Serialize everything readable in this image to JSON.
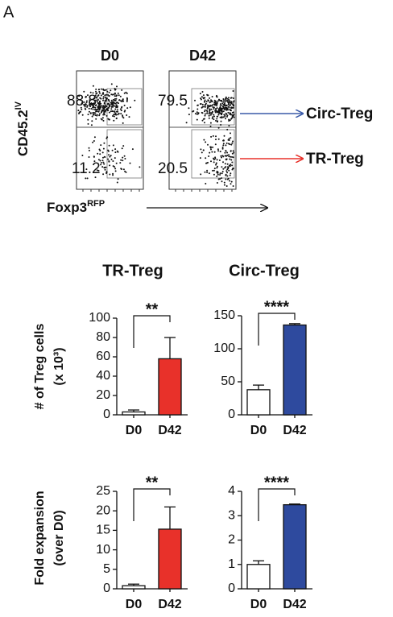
{
  "panel_label": "A",
  "flow": {
    "y_label": "CD45.2",
    "y_label_sup": "IV",
    "x_label": "Foxp3",
    "x_label_sup": "RFP",
    "plots": [
      {
        "title": "D0",
        "gates": [
          88.8,
          11.2
        ]
      },
      {
        "title": "D42",
        "gates": [
          79.5,
          20.5
        ]
      }
    ],
    "arrows": [
      {
        "label": "Circ-Treg",
        "color": "#3a5aa8"
      },
      {
        "label": "TR-Treg",
        "color": "#e8312a"
      }
    ]
  },
  "column_titles": [
    {
      "text": "TR-Treg",
      "color": "#e8312a"
    },
    {
      "text": "Circ-Treg",
      "color": "#3a5aa8"
    }
  ],
  "row_labels": [
    [
      "# of Treg cells",
      "(x 10³)"
    ],
    [
      "Fold expansion",
      "(over D0)"
    ]
  ],
  "chart_data": [
    {
      "type": "bar",
      "categories": [
        "D0",
        "D42"
      ],
      "values": [
        3,
        58
      ],
      "errors": [
        2,
        22
      ],
      "colors": [
        "#ffffff",
        "#e8312a"
      ],
      "ylim": [
        0,
        100
      ],
      "yticks": [
        0,
        20,
        40,
        60,
        80,
        100
      ],
      "significance": "**"
    },
    {
      "type": "bar",
      "categories": [
        "D0",
        "D42"
      ],
      "values": [
        38,
        136
      ],
      "errors": [
        7,
        2
      ],
      "colors": [
        "#ffffff",
        "#2e4a9e"
      ],
      "ylim": [
        0,
        150
      ],
      "yticks": [
        0,
        50,
        100,
        150
      ],
      "significance": "****"
    },
    {
      "type": "bar",
      "categories": [
        "D0",
        "D42"
      ],
      "values": [
        0.8,
        15.3
      ],
      "errors": [
        0.4,
        5.7
      ],
      "colors": [
        "#ffffff",
        "#e8312a"
      ],
      "ylim": [
        0,
        25
      ],
      "yticks": [
        0,
        5,
        10,
        15,
        20,
        25
      ],
      "significance": "**"
    },
    {
      "type": "bar",
      "categories": [
        "D0",
        "D42"
      ],
      "values": [
        1.0,
        3.45
      ],
      "errors": [
        0.15,
        0.03
      ],
      "colors": [
        "#ffffff",
        "#2e4a9e"
      ],
      "ylim": [
        0,
        4
      ],
      "yticks": [
        0,
        1,
        2,
        3,
        4
      ],
      "significance": "****"
    }
  ]
}
